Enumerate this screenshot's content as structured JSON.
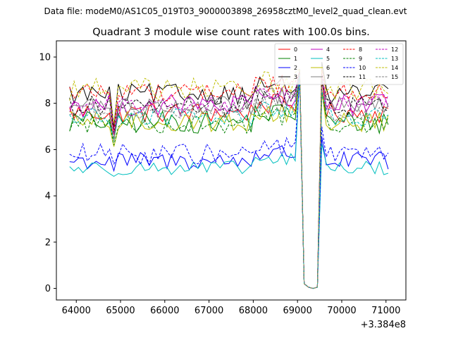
{
  "chart_data": {
    "type": "line",
    "suptitle": "Data file: modeM0/AS1C05_019T03_9000003898_26958cztM0_level2_quad_clean.evt",
    "title": "Quadrant 3 module wise count rates with 100.0s bins.",
    "xlabel": "",
    "ylabel": "",
    "x_offset_label": "+3.384e8",
    "xlim": [
      63550,
      71450
    ],
    "ylim": [
      -0.5,
      10.7
    ],
    "xticks": [
      64000,
      65000,
      66000,
      67000,
      68000,
      69000,
      70000,
      71000
    ],
    "yticks": [
      0,
      2,
      4,
      6,
      8,
      10
    ],
    "x_start": 63850,
    "x_step": 100,
    "legend": {
      "location": "top-right",
      "columns": 4
    },
    "series": [
      {
        "name": "0",
        "color": "#ff0000",
        "dash": "solid",
        "base": 7.6,
        "spread": 0.45,
        "min_early": 6.2
      },
      {
        "name": "1",
        "color": "#008000",
        "dash": "solid",
        "base": 7.2,
        "spread": 0.5,
        "min_early": 6.1
      },
      {
        "name": "2",
        "color": "#0000ff",
        "dash": "solid",
        "base": 5.5,
        "spread": 0.4,
        "min_early": 5.0
      },
      {
        "name": "3",
        "color": "#000000",
        "dash": "solid",
        "base": 8.4,
        "spread": 0.45,
        "min_early": 6.8
      },
      {
        "name": "4",
        "color": "#bf00bf",
        "dash": "solid",
        "base": 7.9,
        "spread": 0.5,
        "min_early": 6.5
      },
      {
        "name": "5",
        "color": "#00bfbf",
        "dash": "solid",
        "base": 5.2,
        "spread": 0.3,
        "min_early": 4.8
      },
      {
        "name": "6",
        "color": "#bfbf00",
        "dash": "solid",
        "base": 7.2,
        "spread": 0.45,
        "min_early": 6.0
      },
      {
        "name": "7",
        "color": "#808080",
        "dash": "solid",
        "base": 7.9,
        "spread": 0.4,
        "min_early": 6.5
      },
      {
        "name": "8",
        "color": "#ff0000",
        "dash": "dashed",
        "base": 8.5,
        "spread": 0.4,
        "min_early": 6.8
      },
      {
        "name": "9",
        "color": "#008000",
        "dash": "dashed",
        "base": 7.1,
        "spread": 0.4,
        "min_early": 6.1
      },
      {
        "name": "10",
        "color": "#0000ff",
        "dash": "dashed",
        "base": 5.8,
        "spread": 0.45,
        "min_early": 5.2
      },
      {
        "name": "11",
        "color": "#000000",
        "dash": "dashed",
        "base": 7.9,
        "spread": 0.45,
        "min_early": 6.4
      },
      {
        "name": "12",
        "color": "#bf00bf",
        "dash": "dashed",
        "base": 8.0,
        "spread": 0.4,
        "min_early": 6.6
      },
      {
        "name": "13",
        "color": "#00bfbf",
        "dash": "dashed",
        "base": 7.4,
        "spread": 0.4,
        "min_early": 6.3
      },
      {
        "name": "14",
        "color": "#bfbf00",
        "dash": "dashed",
        "base": 8.6,
        "spread": 0.5,
        "min_early": 6.9
      },
      {
        "name": "15",
        "color": "#808080",
        "dash": "dashed",
        "base": 7.6,
        "spread": 0.4,
        "min_early": 6.4
      }
    ],
    "features": {
      "dip_at_x": 64850,
      "gap_x": [
        69150,
        69450
      ],
      "gap_floor": [
        0.2,
        0.05,
        0.0,
        0.05
      ],
      "spike_x": 69050,
      "spike_value": 9.5,
      "rebound_x": 69550
    }
  }
}
